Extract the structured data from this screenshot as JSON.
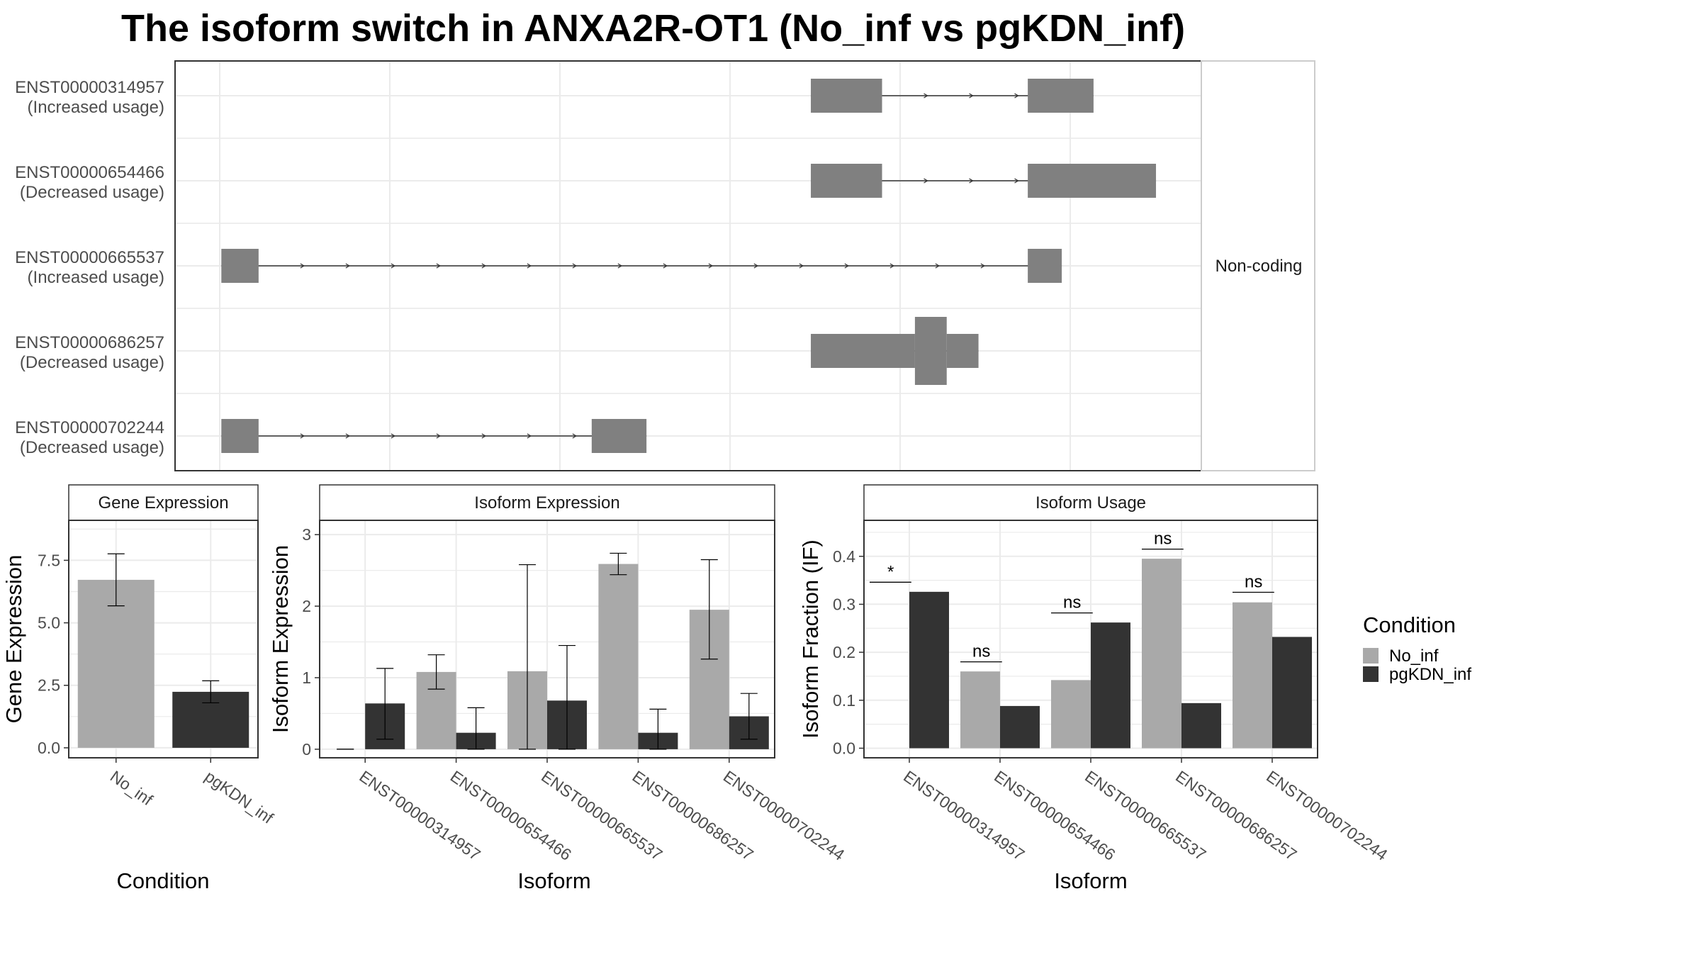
{
  "title": "The isoform switch in ANXA2R-OT1 (No_inf vs pgKDN_inf)",
  "colors": {
    "No_inf": "#a9a9a9",
    "pgKDN_inf": "#333333",
    "exon": "#808080",
    "grid": "#ebebeb",
    "panel_border": "#333333",
    "strip_border": "#cccccc"
  },
  "chart_data": [
    {
      "type": "gene-structure",
      "panel_label": "Non-coding",
      "genomic_axis_labels": false,
      "transcripts": [
        {
          "id": "ENST00000314957",
          "usage": "(Increased usage)",
          "exons": [
            [
              740,
              805,
              "thin"
            ],
            [
              938,
              998,
              "thin"
            ]
          ],
          "arrow_dir": 1
        },
        {
          "id": "ENST00000654466",
          "usage": "(Decreased usage)",
          "exons": [
            [
              740,
              805,
              "thin"
            ],
            [
              938,
              1055,
              "thin"
            ]
          ],
          "arrow_dir": 1
        },
        {
          "id": "ENST00000665537",
          "usage": "(Increased usage)",
          "exons": [
            [
              202,
              236,
              "thin"
            ],
            [
              938,
              969,
              "thin"
            ]
          ],
          "arrow_dir": 1
        },
        {
          "id": "ENST00000686257",
          "usage": "(Decreased usage)",
          "exons": [
            [
              740,
              835,
              "thin"
            ],
            [
              835,
              864,
              "thick"
            ],
            [
              864,
              893,
              "thin"
            ]
          ],
          "arrow_dir": 0
        },
        {
          "id": "ENST00000702244",
          "usage": "(Decreased usage)",
          "exons": [
            [
              202,
              236,
              "thin"
            ],
            [
              540,
              590,
              "thin"
            ]
          ],
          "arrow_dir": 1
        }
      ]
    },
    {
      "type": "bar",
      "panel_title": "Gene Expression",
      "xlabel": "Condition",
      "ylabel": "Gene Expression",
      "ylim": [
        -0.4,
        9.1
      ],
      "yticks": [
        0.0,
        2.5,
        5.0,
        7.5
      ],
      "ytick_labels": [
        "0.0",
        "2.5",
        "5.0",
        "7.5"
      ],
      "categories": [
        "No_inf",
        "pgKDN_inf"
      ],
      "series": [
        {
          "name": "No_inf",
          "values": [
            6.72,
            null
          ],
          "errors": [
            [
              5.68,
              7.76
            ],
            null
          ]
        },
        {
          "name": "pgKDN_inf",
          "values": [
            null,
            2.24
          ],
          "errors": [
            null,
            [
              1.8,
              2.68
            ]
          ]
        }
      ],
      "single_bar_categories": true
    },
    {
      "type": "bar",
      "panel_title": "Isoform Expression",
      "xlabel": "Isoform",
      "ylabel": "Isoform Expression",
      "ylim": [
        -0.12,
        3.2
      ],
      "yticks": [
        0,
        1,
        2,
        3
      ],
      "ytick_labels": [
        "0",
        "1",
        "2",
        "3"
      ],
      "categories": [
        "ENST00000314957",
        "ENST00000654466",
        "ENST00000665537",
        "ENST00000686257",
        "ENST00000702244"
      ],
      "series": [
        {
          "name": "No_inf",
          "values": [
            0.0,
            1.08,
            1.09,
            2.59,
            1.95
          ],
          "errors": [
            [
              0.0,
              0.0
            ],
            [
              0.84,
              1.32
            ],
            [
              0.0,
              2.58
            ],
            [
              2.44,
              2.74
            ],
            [
              1.26,
              2.65
            ]
          ]
        },
        {
          "name": "pgKDN_inf",
          "values": [
            0.64,
            0.23,
            0.68,
            0.23,
            0.46
          ],
          "errors": [
            [
              0.14,
              1.13
            ],
            [
              0.0,
              0.58
            ],
            [
              0.0,
              1.45
            ],
            [
              0.0,
              0.56
            ],
            [
              0.14,
              0.78
            ]
          ]
        }
      ]
    },
    {
      "type": "bar",
      "panel_title": "Isoform Usage",
      "xlabel": "Isoform",
      "ylabel": "Isoform Fraction (IF)",
      "ylim": [
        -0.02,
        0.475
      ],
      "yticks": [
        0.0,
        0.1,
        0.2,
        0.3,
        0.4
      ],
      "ytick_labels": [
        "0.0",
        "0.1",
        "0.2",
        "0.3",
        "0.4"
      ],
      "categories": [
        "ENST00000314957",
        "ENST00000654466",
        "ENST00000665537",
        "ENST00000686257",
        "ENST00000702244"
      ],
      "series": [
        {
          "name": "No_inf",
          "values": [
            0.0,
            0.16,
            0.142,
            0.395,
            0.304
          ]
        },
        {
          "name": "pgKDN_inf",
          "values": [
            0.326,
            0.088,
            0.262,
            0.094,
            0.232
          ]
        }
      ],
      "significance": [
        {
          "label": "*",
          "y": 0.346
        },
        {
          "label": "ns",
          "y": 0.18
        },
        {
          "label": "ns",
          "y": 0.282
        },
        {
          "label": "ns",
          "y": 0.415
        },
        {
          "label": "ns",
          "y": 0.325
        }
      ]
    }
  ],
  "legend": {
    "title": "Condition",
    "items": [
      {
        "label": "No_inf",
        "color": "#a9a9a9"
      },
      {
        "label": "pgKDN_inf",
        "color": "#333333"
      }
    ],
    "placement": "right"
  }
}
